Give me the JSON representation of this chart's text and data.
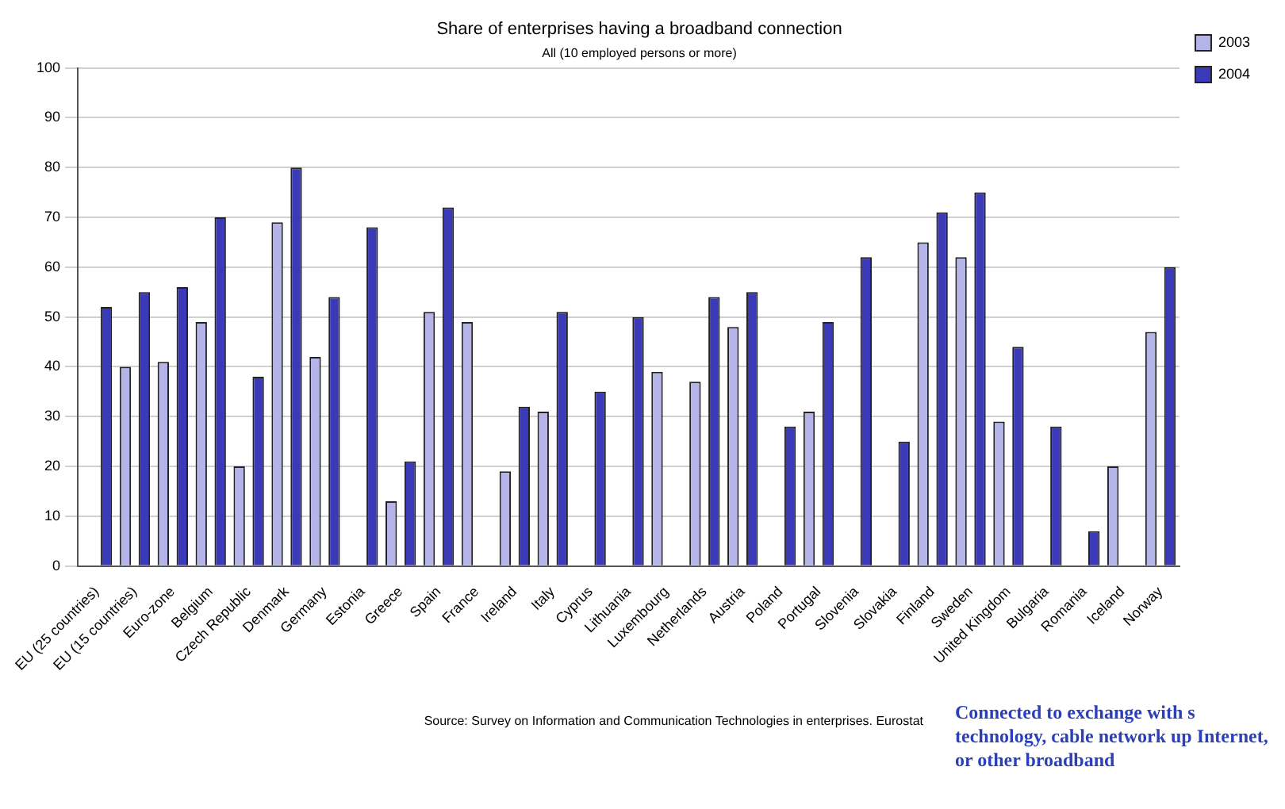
{
  "chart_data": {
    "type": "bar",
    "title": "Share of enterprises having a broadband connection",
    "subtitle": "All (10 employed persons or more)",
    "categories": [
      "EU (25 countries)",
      "EU (15 countries)",
      "Euro-zone",
      "Belgium",
      "Czech Republic",
      "Denmark",
      "Germany",
      "Estonia",
      "Greece",
      "Spain",
      "France",
      "Ireland",
      "Italy",
      "Cyprus",
      "Lithuania",
      "Luxembourg",
      "Netherlands",
      "Austria",
      "Poland",
      "Portugal",
      "Slovenia",
      "Slovakia",
      "Finland",
      "Sweden",
      "United Kingdom",
      "Bulgaria",
      "Romania",
      "Iceland",
      "Norway"
    ],
    "series": [
      {
        "name": "2003",
        "color": "#b4b4e8",
        "values": [
          null,
          40,
          41,
          49,
          20,
          69,
          42,
          null,
          13,
          51,
          49,
          19,
          31,
          null,
          null,
          39,
          37,
          48,
          null,
          31,
          null,
          null,
          65,
          62,
          29,
          null,
          null,
          20,
          47
        ]
      },
      {
        "name": "2004",
        "color": "#3a3ab8",
        "values": [
          52,
          55,
          56,
          70,
          38,
          80,
          54,
          68,
          21,
          72,
          null,
          32,
          51,
          35,
          50,
          null,
          54,
          55,
          28,
          49,
          62,
          25,
          71,
          75,
          44,
          28,
          7,
          null,
          60
        ]
      }
    ],
    "ylim": [
      0,
      100
    ],
    "yticks": [
      0,
      10,
      20,
      30,
      40,
      50,
      60,
      70,
      80,
      90,
      100
    ],
    "grid": "y",
    "legend": "top right",
    "annotations": [
      "Source: Survey on Information and Communication Technologies in enterprises. Eurostat",
      "Connected to exchange with s technology, cable network up Internet, or other broadband"
    ]
  }
}
